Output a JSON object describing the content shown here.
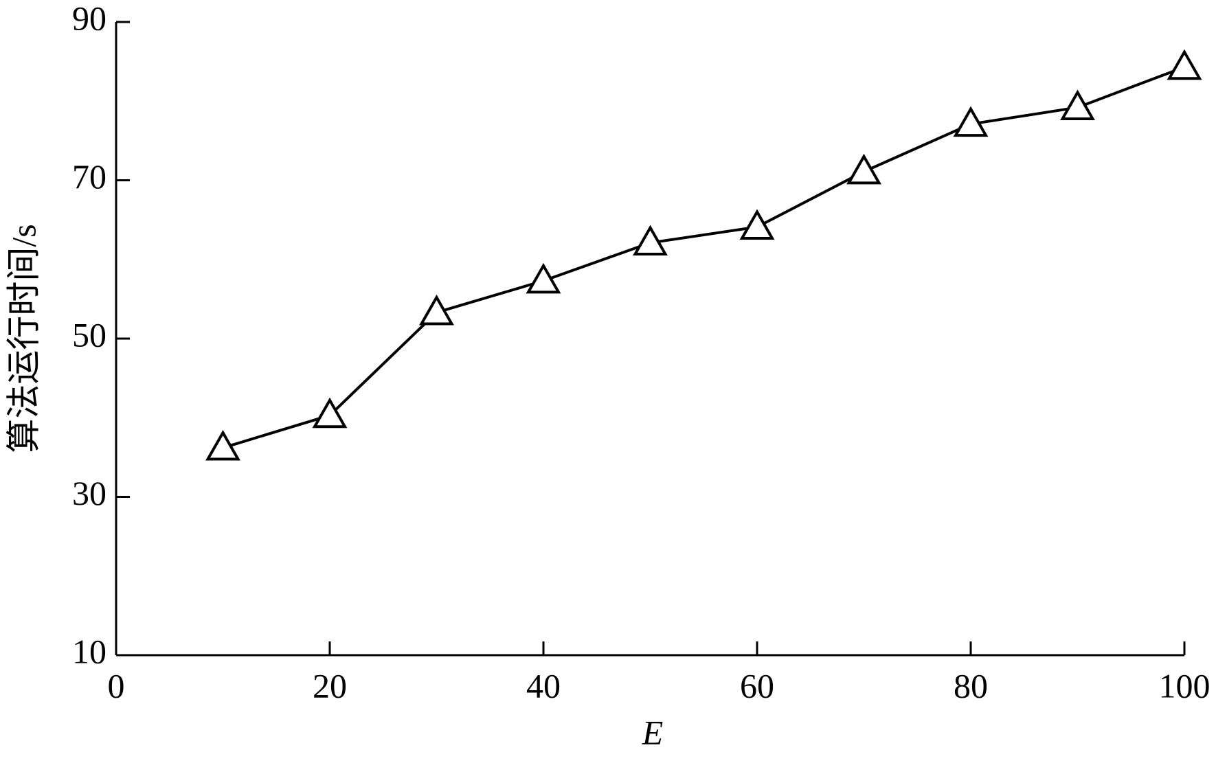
{
  "chart_data": {
    "type": "line",
    "x_label": "E",
    "y_label": "算法运行时间/s",
    "x": [
      10,
      20,
      30,
      40,
      50,
      60,
      70,
      80,
      90,
      100
    ],
    "series": [
      {
        "color": "#000000",
        "marker": "triangle",
        "values": [
          36.2,
          40.3,
          53.3,
          57.3,
          62.1,
          64.1,
          71.1,
          77.1,
          79.2,
          84.3
        ]
      }
    ],
    "xlim": [
      0,
      100
    ],
    "xticks": [
      0,
      20,
      40,
      60,
      80,
      100
    ],
    "ylim": [
      10,
      90
    ],
    "yticks": [
      10,
      30,
      50,
      70,
      90
    ]
  }
}
